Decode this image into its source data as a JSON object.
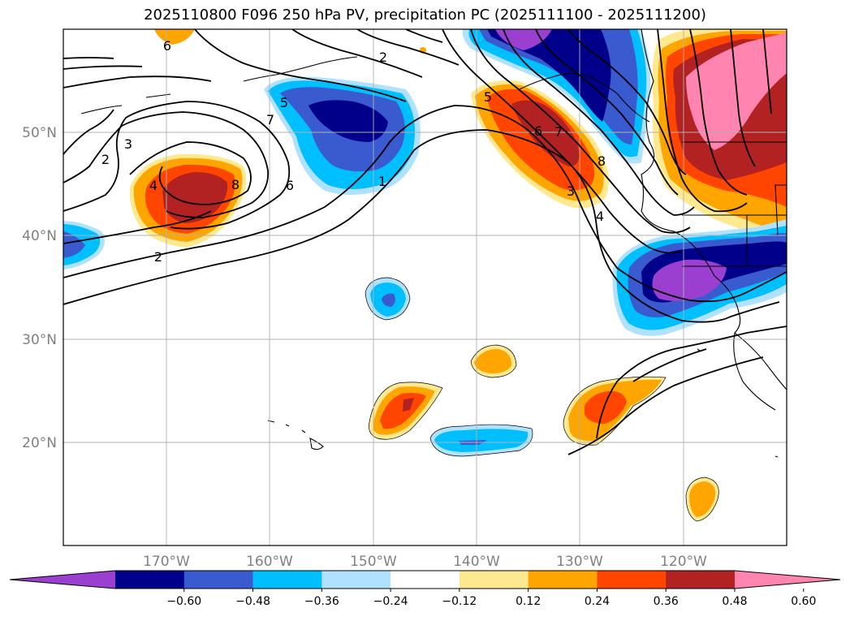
{
  "title": "2025110800 F096 250 hPa PV, precipitation PC (2025111100 - 2025111200)",
  "lat_labels": [
    "50°N",
    "40°N",
    "30°N",
    "20°N"
  ],
  "lon_labels": [
    "170°W",
    "160°W",
    "150°W",
    "140°W",
    "130°W",
    "120°W"
  ],
  "contour_labels": [
    "6",
    "2",
    "5",
    "7",
    "3",
    "2",
    "4",
    "8",
    "6",
    "1",
    "2",
    "5",
    "6",
    "7",
    "8",
    "3",
    "4"
  ],
  "colorbar": {
    "labels": [
      "−0.60",
      "−0.48",
      "−0.36",
      "−0.24",
      "−0.12",
      "0.12",
      "0.24",
      "0.36",
      "0.48",
      "0.60"
    ],
    "colors": [
      "#9a3fd0",
      "#00008b",
      "#3a5bcf",
      "#00bfff",
      "#b0e2ff",
      "#ffffff",
      "#ffe990",
      "#ffa500",
      "#ff4500",
      "#b22222",
      "#ff85b0"
    ]
  }
}
